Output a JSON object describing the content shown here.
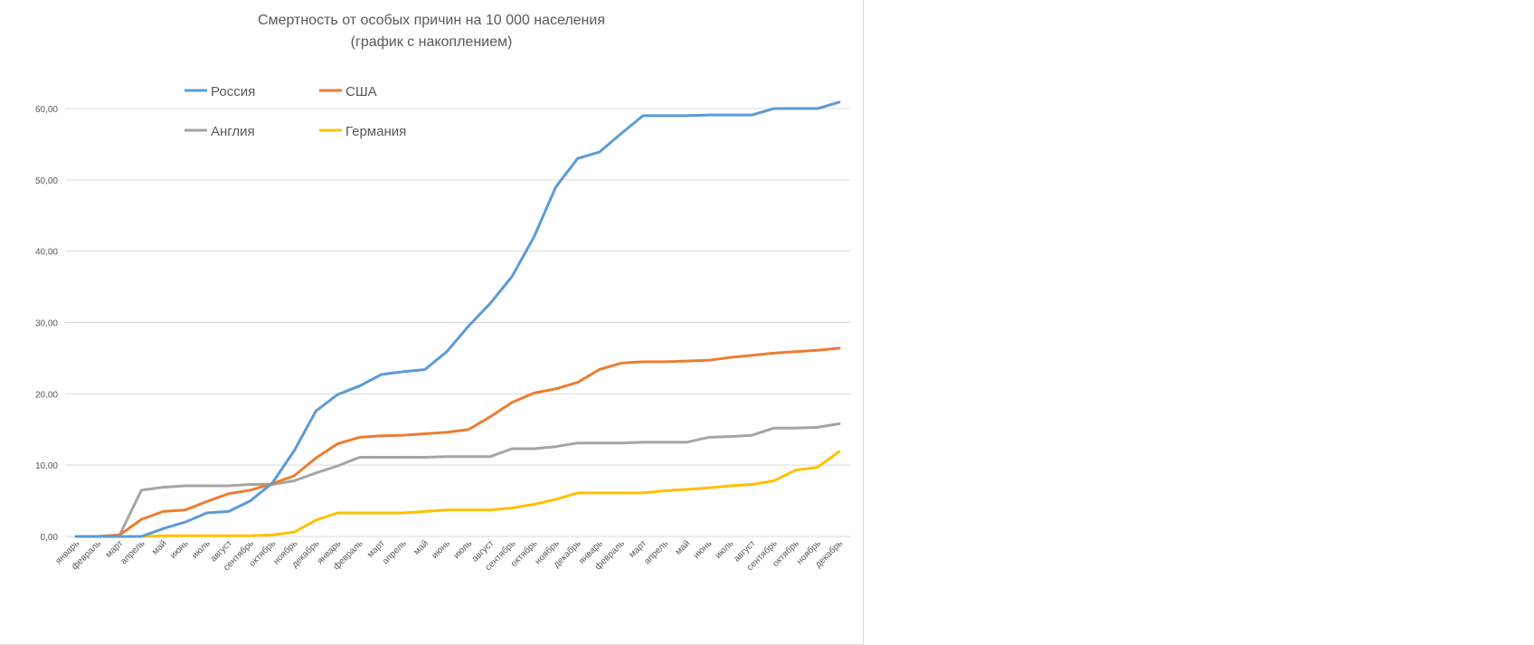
{
  "chart_data": {
    "type": "line",
    "title_line1": "Смертность от особых причин на 10 000 населения",
    "title_line2": "(график с накоплением)",
    "xlabel": "",
    "ylabel": "",
    "ylim": [
      0,
      60
    ],
    "y_ticks": [
      "0,00",
      "10,00",
      "20,00",
      "30,00",
      "40,00",
      "50,00",
      "60,00"
    ],
    "grid": "horizontal",
    "legend_position": "top-left",
    "categories": [
      "январь",
      "февраль",
      "март",
      "апрель",
      "май",
      "июнь",
      "июль",
      "август",
      "сентябрь",
      "октябрь",
      "ноябрь",
      "декабрь",
      "январь",
      "февраль",
      "март",
      "апрель",
      "май",
      "июнь",
      "июль",
      "август",
      "сентябрь",
      "октябрь",
      "ноябрь",
      "декабрь",
      "январь",
      "февраль",
      "март",
      "апрель",
      "май",
      "июнь",
      "июль",
      "август",
      "сентябрь",
      "октябрь",
      "ноябрь",
      "декабрь"
    ],
    "series": [
      {
        "name": "Россия",
        "color": "#5b9bd5",
        "values": [
          0,
          0,
          0,
          0,
          1.1,
          2.0,
          3.3,
          3.5,
          5.0,
          7.5,
          12.0,
          17.6,
          19.9,
          21.1,
          22.7,
          23.1,
          23.4,
          25.9,
          29.5,
          32.7,
          36.5,
          42.0,
          49.0,
          53.0,
          53.9,
          56.5,
          59.0,
          59.0,
          59.0,
          59.1,
          59.1,
          59.1,
          60.0,
          60.0,
          60.0,
          60.9
        ]
      },
      {
        "name": "США",
        "color": "#ed7d31",
        "values": [
          0,
          0,
          0.2,
          2.4,
          3.5,
          3.7,
          4.9,
          6.0,
          6.5,
          7.4,
          8.5,
          11.0,
          13.0,
          13.9,
          14.1,
          14.2,
          14.4,
          14.6,
          15.0,
          16.8,
          18.8,
          20.1,
          20.7,
          21.6,
          23.4,
          24.3,
          24.5,
          24.5,
          24.6,
          24.7,
          25.1,
          25.4,
          25.7,
          25.9,
          26.1,
          26.4
        ]
      },
      {
        "name": "Англия",
        "color": "#a5a5a5",
        "values": [
          0,
          0,
          0.2,
          6.5,
          6.9,
          7.1,
          7.1,
          7.1,
          7.3,
          7.3,
          7.8,
          8.9,
          9.9,
          11.1,
          11.1,
          11.1,
          11.1,
          11.2,
          11.2,
          11.2,
          12.3,
          12.3,
          12.6,
          13.1,
          13.1,
          13.1,
          13.2,
          13.2,
          13.2,
          13.9,
          14.0,
          14.2,
          15.2,
          15.2,
          15.3,
          15.8
        ]
      },
      {
        "name": "Германия",
        "color": "#ffc000",
        "values": [
          0,
          0,
          0,
          0,
          0.1,
          0.1,
          0.1,
          0.1,
          0.1,
          0.2,
          0.6,
          2.3,
          3.3,
          3.3,
          3.3,
          3.3,
          3.5,
          3.7,
          3.7,
          3.7,
          4.0,
          4.5,
          5.2,
          6.1,
          6.1,
          6.1,
          6.1,
          6.4,
          6.6,
          6.8,
          7.1,
          7.3,
          7.8,
          9.3,
          9.7,
          11.9
        ]
      }
    ]
  }
}
